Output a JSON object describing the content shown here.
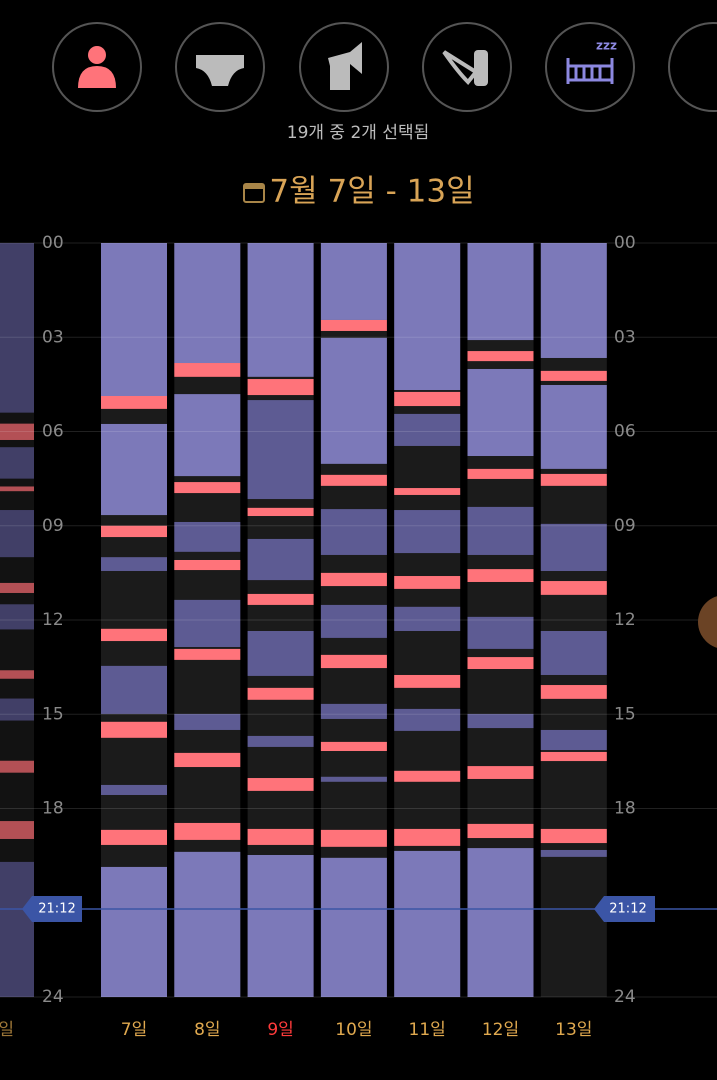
{
  "selection_text": "19개 중 2개 선택됨",
  "date_range": "7월 7일 - 13일",
  "colors": {
    "sleep": "#7c79b9",
    "nap": "#5d5b93",
    "feed": "#ff737a",
    "column": "#1b1b1b",
    "now": "#3b55a6"
  },
  "hour_ticks": [
    {
      "value": 0,
      "label": "00"
    },
    {
      "value": 3,
      "label": "03"
    },
    {
      "value": 6,
      "label": "06"
    },
    {
      "value": 9,
      "label": "09"
    },
    12,
    15,
    18,
    24
  ],
  "hour_range": [
    0,
    24
  ],
  "now": {
    "value": 21.2,
    "label": "21:12"
  },
  "previous_day": {
    "label": "일",
    "nap": [
      [
        0,
        5.4
      ],
      [
        6.5,
        7.5
      ],
      [
        8.5,
        10.0
      ],
      [
        11.5,
        12.3
      ],
      [
        14.5,
        15.2
      ],
      [
        19.7,
        24
      ]
    ],
    "feed": [
      [
        5.75,
        6.27
      ],
      [
        7.75,
        7.9
      ],
      [
        10.82,
        11.14
      ],
      [
        13.6,
        13.87
      ],
      [
        16.48,
        16.86
      ],
      [
        18.4,
        18.97
      ]
    ]
  },
  "days": [
    {
      "label": "7일",
      "color": "#e0a94f",
      "sleep": [
        [
          0,
          4.87
        ],
        [
          5.76,
          8.66
        ],
        [
          19.86,
          24
        ]
      ],
      "nap": [
        [
          10.0,
          10.44
        ],
        [
          13.46,
          14.99
        ],
        [
          17.25,
          17.57
        ]
      ],
      "feed": [
        [
          4.87,
          5.28
        ],
        [
          9.0,
          9.36
        ],
        [
          12.28,
          12.67
        ],
        [
          15.24,
          15.75
        ],
        [
          18.68,
          19.16
        ]
      ]
    },
    {
      "label": "8일",
      "color": "#e0a94f",
      "sleep": [
        [
          0,
          3.82
        ],
        [
          4.81,
          7.42
        ],
        [
          19.38,
          24
        ]
      ],
      "nap": [
        [
          8.88,
          9.83
        ],
        [
          11.36,
          12.86
        ],
        [
          14.99,
          15.5
        ]
      ],
      "feed": [
        [
          3.82,
          4.26
        ],
        [
          7.61,
          7.96
        ],
        [
          10.09,
          10.41
        ],
        [
          12.92,
          13.27
        ],
        [
          16.23,
          16.68
        ],
        [
          18.46,
          19.0
        ]
      ]
    },
    {
      "label": "9일",
      "color": "#ff3b3b",
      "sleep": [
        [
          0,
          4.26
        ],
        [
          19.48,
          24
        ]
      ],
      "nap": [
        [
          5.0,
          8.15
        ],
        [
          9.42,
          10.73
        ],
        [
          12.35,
          13.78
        ],
        [
          15.69,
          16.04
        ]
      ],
      "feed": [
        [
          4.33,
          4.84
        ],
        [
          8.43,
          8.69
        ],
        [
          11.17,
          11.52
        ],
        [
          14.16,
          14.54
        ],
        [
          17.03,
          17.44
        ],
        [
          18.65,
          19.16
        ]
      ]
    },
    {
      "label": "10일",
      "color": "#e0a94f",
      "sleep": [
        [
          0,
          2.45
        ],
        [
          3.02,
          7.03
        ],
        [
          19.57,
          24
        ]
      ],
      "nap": [
        [
          8.47,
          9.93
        ],
        [
          11.52,
          12.57
        ],
        [
          14.67,
          15.15
        ],
        [
          16.99,
          17.15
        ]
      ],
      "feed": [
        [
          2.45,
          2.8
        ],
        [
          7.38,
          7.73
        ],
        [
          10.5,
          10.92
        ],
        [
          13.11,
          13.53
        ],
        [
          15.88,
          16.17
        ],
        [
          18.68,
          19.22
        ]
      ]
    },
    {
      "label": "11일",
      "color": "#e0a94f",
      "sleep": [
        [
          0,
          4.68
        ],
        [
          19.35,
          24
        ]
      ],
      "nap": [
        [
          5.44,
          6.46
        ],
        [
          8.5,
          9.87
        ],
        [
          11.58,
          12.35
        ],
        [
          14.83,
          15.53
        ]
      ],
      "feed": [
        [
          4.74,
          5.19
        ],
        [
          7.8,
          8.02
        ],
        [
          10.6,
          11.01
        ],
        [
          13.75,
          14.16
        ],
        [
          16.8,
          17.15
        ],
        [
          18.65,
          19.19
        ]
      ]
    },
    {
      "label": "12일",
      "color": "#e0a94f",
      "sleep": [
        [
          0,
          3.09
        ],
        [
          4.01,
          6.78
        ],
        [
          19.26,
          24
        ]
      ],
      "nap": [
        [
          8.4,
          9.93
        ],
        [
          11.9,
          12.92
        ],
        [
          14.99,
          15.44
        ]
      ],
      "feed": [
        [
          3.44,
          3.76
        ],
        [
          7.19,
          7.51
        ],
        [
          10.38,
          10.79
        ],
        [
          13.18,
          13.56
        ],
        [
          16.65,
          17.06
        ],
        [
          18.49,
          18.94
        ]
      ]
    },
    {
      "label": "13일",
      "color": "#e0a94f",
      "sleep": [
        [
          0,
          3.66
        ],
        [
          4.52,
          7.19
        ]
      ],
      "nap": [
        [
          8.94,
          10.44
        ],
        [
          12.35,
          13.75
        ],
        [
          15.5,
          16.14
        ],
        [
          19.32,
          19.54
        ]
      ],
      "feed": [
        [
          4.07,
          4.39
        ],
        [
          7.35,
          7.73
        ],
        [
          10.76,
          11.2
        ],
        [
          14.07,
          14.51
        ],
        [
          16.2,
          16.49
        ],
        [
          18.65,
          19.1
        ]
      ]
    }
  ]
}
